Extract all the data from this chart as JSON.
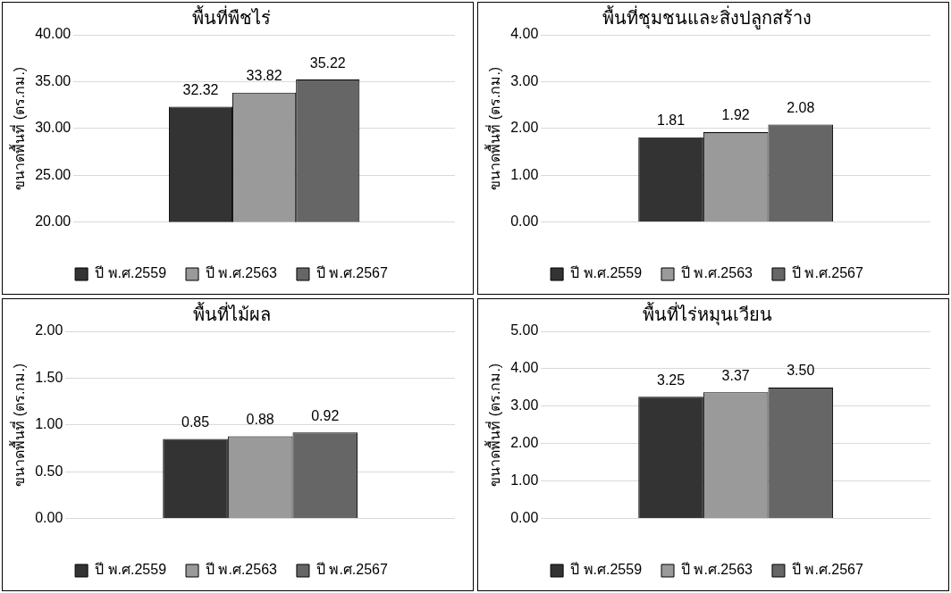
{
  "chart_data": [
    {
      "type": "bar",
      "title": "พื้นที่พืชไร่",
      "ylabel": "ขนาดพื้นที่ (ตร.กม.)",
      "categories": [
        null
      ],
      "series": [
        {
          "name": "ปี พ.ศ.2559",
          "color": "#333333",
          "values": [
            32.32
          ],
          "value_labels": [
            "32.32"
          ]
        },
        {
          "name": "ปี พ.ศ.2563",
          "color": "#9a9a9a",
          "values": [
            33.82
          ],
          "value_labels": [
            "33.82"
          ]
        },
        {
          "name": "ปี พ.ศ.2567",
          "color": "#666666",
          "values": [
            35.22
          ],
          "value_labels": [
            "35.22"
          ]
        }
      ],
      "ylim": [
        20,
        40
      ],
      "yticks": [
        {
          "value": 20,
          "label": "20.00"
        },
        {
          "value": 25,
          "label": "25.00"
        },
        {
          "value": 30,
          "label": "30.00"
        },
        {
          "value": 35,
          "label": "35.00"
        },
        {
          "value": 40,
          "label": "40.00"
        }
      ],
      "grid": "y",
      "legend": "bottom"
    },
    {
      "type": "bar",
      "title": "พื้นที่ชุมชนและสิ่งปลูกสร้าง",
      "ylabel": "ขนาดพื้นที่ (ตร.กม.)",
      "categories": [
        null
      ],
      "series": [
        {
          "name": "ปี พ.ศ.2559",
          "color": "#333333",
          "values": [
            1.81
          ],
          "value_labels": [
            "1.81"
          ]
        },
        {
          "name": "ปี พ.ศ.2563",
          "color": "#9a9a9a",
          "values": [
            1.92
          ],
          "value_labels": [
            "1.92"
          ]
        },
        {
          "name": "ปี พ.ศ.2567",
          "color": "#666666",
          "values": [
            2.08
          ],
          "value_labels": [
            "2.08"
          ]
        }
      ],
      "ylim": [
        0,
        4
      ],
      "yticks": [
        {
          "value": 0,
          "label": "0.00"
        },
        {
          "value": 1,
          "label": "1.00"
        },
        {
          "value": 2,
          "label": "2.00"
        },
        {
          "value": 3,
          "label": "3.00"
        },
        {
          "value": 4,
          "label": "4.00"
        }
      ],
      "grid": "y",
      "legend": "bottom"
    },
    {
      "type": "bar",
      "title": "พื้นที่ไม้ผล",
      "ylabel": "ขนาดพื้นที่ (ตร.กม.)",
      "categories": [
        null
      ],
      "series": [
        {
          "name": "ปี พ.ศ.2559",
          "color": "#333333",
          "values": [
            0.85
          ],
          "value_labels": [
            "0.85"
          ]
        },
        {
          "name": "ปี พ.ศ.2563",
          "color": "#9a9a9a",
          "values": [
            0.88
          ],
          "value_labels": [
            "0.88"
          ]
        },
        {
          "name": "ปี พ.ศ.2567",
          "color": "#666666",
          "values": [
            0.92
          ],
          "value_labels": [
            "0.92"
          ]
        }
      ],
      "ylim": [
        0,
        2
      ],
      "yticks": [
        {
          "value": 0,
          "label": "0.00"
        },
        {
          "value": 0.5,
          "label": "0.50"
        },
        {
          "value": 1,
          "label": "1.00"
        },
        {
          "value": 1.5,
          "label": "1.50"
        },
        {
          "value": 2,
          "label": "2.00"
        }
      ],
      "grid": "y",
      "legend": "bottom"
    },
    {
      "type": "bar",
      "title": "พื้นที่ไร่หมุนเวียน",
      "ylabel": "ขนาดพื้นที่ (ตร.กม.)",
      "categories": [
        null
      ],
      "series": [
        {
          "name": "ปี พ.ศ.2559",
          "color": "#333333",
          "values": [
            3.25
          ],
          "value_labels": [
            "3.25"
          ]
        },
        {
          "name": "ปี พ.ศ.2563",
          "color": "#9a9a9a",
          "values": [
            3.37
          ],
          "value_labels": [
            "3.37"
          ]
        },
        {
          "name": "ปี พ.ศ.2567",
          "color": "#666666",
          "values": [
            3.5
          ],
          "value_labels": [
            "3.50"
          ]
        }
      ],
      "ylim": [
        0,
        5
      ],
      "yticks": [
        {
          "value": 0,
          "label": "0.00"
        },
        {
          "value": 1,
          "label": "1.00"
        },
        {
          "value": 2,
          "label": "2.00"
        },
        {
          "value": 3,
          "label": "3.00"
        },
        {
          "value": 4,
          "label": "4.00"
        },
        {
          "value": 5,
          "label": "5.00"
        }
      ],
      "grid": "y",
      "legend": "bottom"
    }
  ]
}
